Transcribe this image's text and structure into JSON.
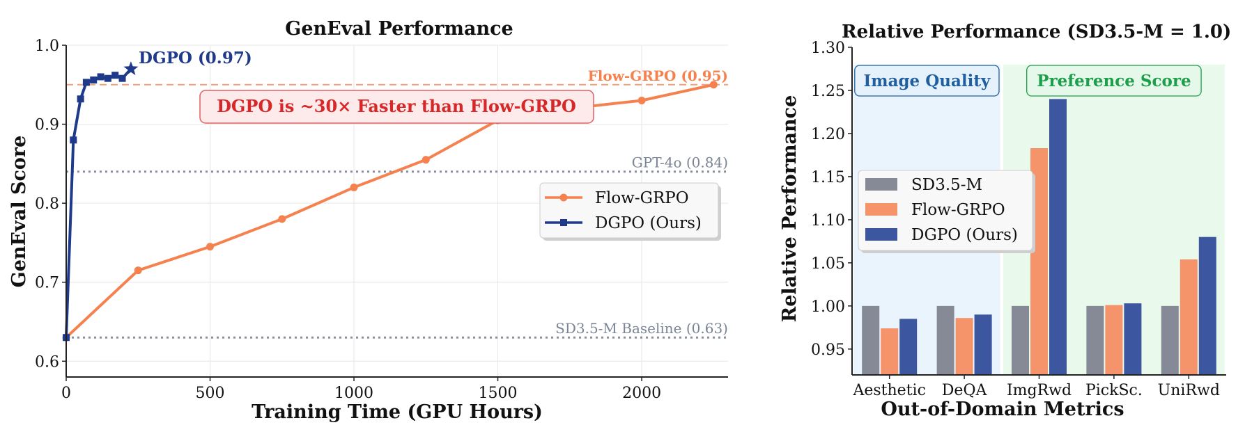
{
  "chart_data": [
    {
      "type": "line",
      "title": "GenEval Performance",
      "xlabel": "Training Time (GPU Hours)",
      "ylabel": "GenEval Score",
      "xlim": [
        0,
        2300
      ],
      "ylim": [
        0.58,
        1.0
      ],
      "xticks": [
        "0",
        "500",
        "1000",
        "1500",
        "2000"
      ],
      "yticks": [
        "0.6",
        "0.7",
        "0.8",
        "0.9",
        "1.0"
      ],
      "grid": true,
      "legend_position": "center-right",
      "series": [
        {
          "name": "Flow-GRPO",
          "color": "#f5814f",
          "marker": "circle",
          "x": [
            0,
            250,
            500,
            750,
            1000,
            1250,
            1500,
            1750,
            2000,
            2250
          ],
          "y": [
            0.63,
            0.715,
            0.745,
            0.78,
            0.82,
            0.855,
            0.905,
            0.92,
            0.93,
            0.95
          ]
        },
        {
          "name": "DGPO (Ours)",
          "color": "#1f3a8a",
          "marker": "square",
          "x": [
            0,
            25,
            50,
            70,
            95,
            120,
            145,
            170,
            195,
            225
          ],
          "y": [
            0.63,
            0.88,
            0.932,
            0.953,
            0.956,
            0.96,
            0.958,
            0.962,
            0.958,
            0.97
          ]
        }
      ],
      "reference_lines": [
        {
          "label": "Flow-GRPO (0.95)",
          "y": 0.95,
          "color": "#f5814f",
          "style": "dashed"
        },
        {
          "label": "GPT-4o (0.84)",
          "y": 0.84,
          "color": "#7b8494",
          "style": "dotted"
        },
        {
          "label": "SD3.5-M Baseline (0.63)",
          "y": 0.63,
          "color": "#7b8494",
          "style": "dotted"
        }
      ],
      "annotations": [
        {
          "text": "DGPO (0.97)",
          "x": 225,
          "y": 0.97,
          "color": "#1f3a8a"
        },
        {
          "text": "DGPO is ~30× Faster than Flow-GRPO",
          "color": "#d62828"
        }
      ]
    },
    {
      "type": "bar",
      "title": "Relative Performance (SD3.5-M = 1.0)",
      "xlabel": "Out-of-Domain Metrics",
      "ylabel": "Relative Performance",
      "categories": [
        "Aesthetic",
        "DeQA",
        "ImgRwd",
        "PickSc.",
        "UniRwd"
      ],
      "ylim": [
        0.92,
        1.3
      ],
      "yticks": [
        "0.95",
        "1.00",
        "1.05",
        "1.10",
        "1.15",
        "1.20",
        "1.25",
        "1.30"
      ],
      "legend_position": "center-left",
      "series": [
        {
          "name": "SD3.5-M",
          "color": "#858a96",
          "values": [
            1.0,
            1.0,
            1.0,
            1.0,
            1.0
          ]
        },
        {
          "name": "Flow-GRPO",
          "color": "#f5946a",
          "values": [
            0.974,
            0.986,
            1.183,
            1.001,
            1.054
          ]
        },
        {
          "name": "DGPO (Ours)",
          "color": "#3d56a0",
          "values": [
            0.985,
            0.99,
            1.24,
            1.003,
            1.08
          ]
        }
      ],
      "groups": [
        {
          "label": "Image Quality",
          "categories": [
            "Aesthetic",
            "DeQA"
          ],
          "color": "#1f5f9f",
          "fill": "#e6f2fb"
        },
        {
          "label": "Preference Score",
          "categories": [
            "ImgRwd",
            "PickSc.",
            "UniRwd"
          ],
          "color": "#1c9e4a",
          "fill": "#e5f8e9"
        }
      ]
    }
  ]
}
